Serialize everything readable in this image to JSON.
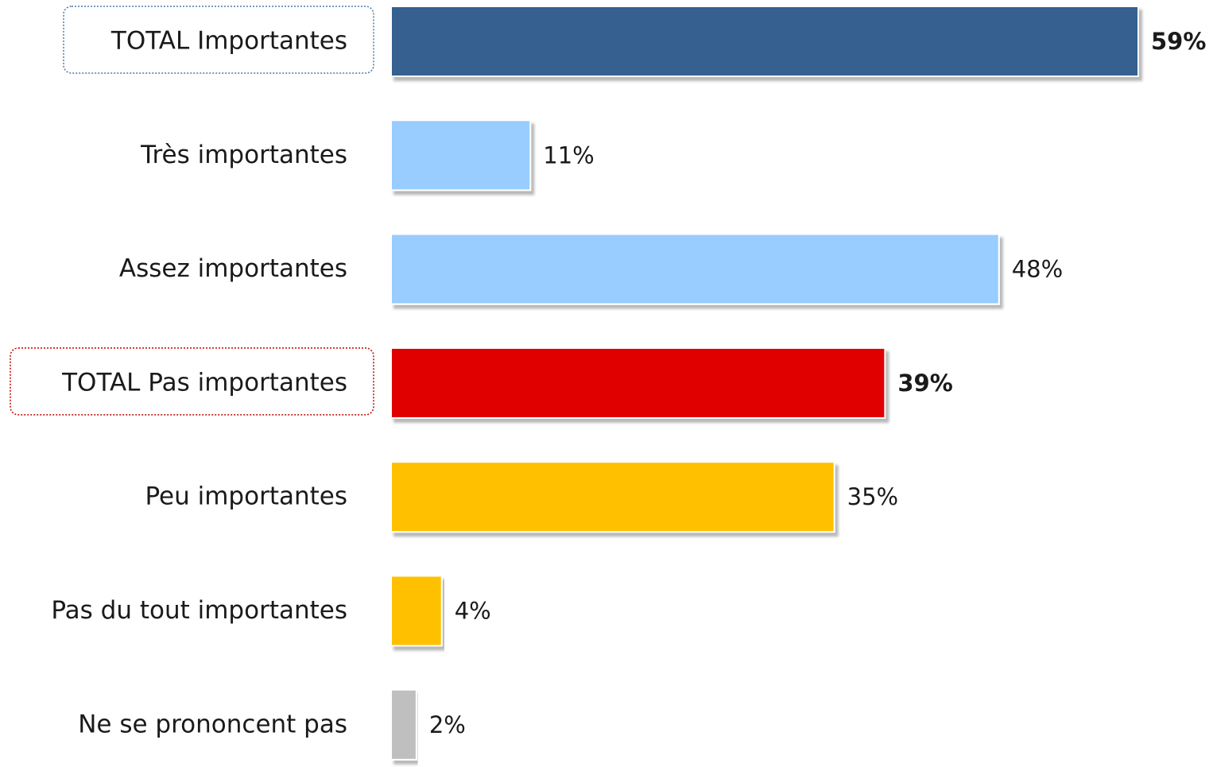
{
  "chart_data": {
    "type": "bar",
    "orientation": "horizontal",
    "categories": [
      "TOTAL Importantes",
      "Très importantes",
      "Assez importantes",
      "TOTAL Pas importantes",
      "Peu importantes",
      "Pas du tout importantes",
      "Ne se prononcent pas"
    ],
    "values": [
      59,
      11,
      48,
      39,
      35,
      4,
      2
    ],
    "value_labels": [
      "59%",
      "11%",
      "48%",
      "39%",
      "35%",
      "4%",
      "2%"
    ],
    "bold_value_labels": [
      true,
      false,
      false,
      true,
      false,
      false,
      false
    ],
    "highlighted_categories": [
      true,
      false,
      false,
      true,
      false,
      false,
      false
    ],
    "bar_colors": [
      "#36618f",
      "#99ccff",
      "#99ccff",
      "#e00000",
      "#ffc000",
      "#ffc000",
      "#bfbfbf"
    ],
    "highlight_border_colors": [
      "#4a7aa8",
      null,
      null,
      "#c00000",
      null,
      null,
      null
    ],
    "unit": "%",
    "xlim": [
      0,
      59
    ],
    "grid": false,
    "legend": "none"
  }
}
